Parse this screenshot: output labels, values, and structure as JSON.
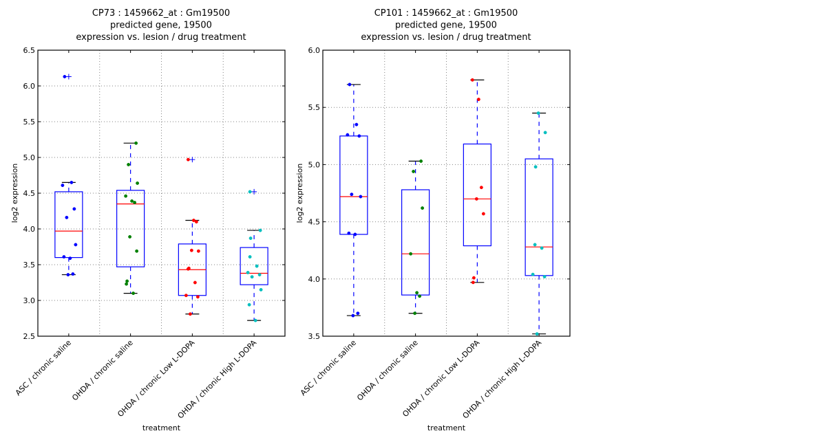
{
  "chart_data": [
    {
      "type": "boxplot",
      "title_lines": [
        "CP73 : 1459662_at : Gm19500",
        "predicted gene, 19500",
        "expression vs. lesion / drug treatment"
      ],
      "xlabel": "treatment",
      "ylabel": "log2 expression",
      "ylim": [
        2.5,
        6.5
      ],
      "yticks": [
        2.5,
        3.0,
        3.5,
        4.0,
        4.5,
        5.0,
        5.5,
        6.0,
        6.5
      ],
      "ytick_labels": [
        "2.5",
        "3.0",
        "3.5",
        "4.0",
        "4.5",
        "5.0",
        "5.5",
        "6.0",
        "6.5"
      ],
      "grid": true,
      "categories": [
        "ASC / chronic saline",
        "OHDA / chronic saline",
        "OHDA / chronic Low L-DOPA",
        "OHDA / chronic High L-DOPA"
      ],
      "point_colors": [
        "#0000ff",
        "#008000",
        "#ff0000",
        "#00bfbf"
      ],
      "boxes": [
        {
          "q1": 3.6,
          "median": 3.97,
          "q3": 4.52,
          "whisker_low": 3.36,
          "whisker_high": 4.65,
          "outliers": [
            6.13
          ]
        },
        {
          "q1": 3.47,
          "median": 4.35,
          "q3": 4.54,
          "whisker_low": 3.1,
          "whisker_high": 5.2,
          "outliers": []
        },
        {
          "q1": 3.07,
          "median": 3.43,
          "q3": 3.79,
          "whisker_low": 2.81,
          "whisker_high": 4.12,
          "outliers": [
            4.97
          ]
        },
        {
          "q1": 3.22,
          "median": 3.38,
          "q3": 3.74,
          "whisker_low": 2.72,
          "whisker_high": 3.98,
          "outliers": [
            4.52
          ]
        }
      ],
      "points": [
        [
          6.13,
          4.65,
          4.61,
          4.28,
          4.16,
          3.78,
          3.61,
          3.59,
          3.37,
          3.36
        ],
        [
          5.2,
          4.9,
          4.64,
          4.46,
          4.39,
          4.37,
          3.89,
          3.69,
          3.27,
          3.23,
          3.1
        ],
        [
          4.97,
          4.12,
          4.1,
          3.7,
          3.69,
          3.45,
          3.44,
          3.25,
          3.07,
          3.05,
          2.81
        ],
        [
          4.52,
          3.98,
          3.87,
          3.61,
          3.48,
          3.39,
          3.36,
          3.33,
          3.15,
          2.94,
          2.72
        ]
      ]
    },
    {
      "type": "boxplot",
      "title_lines": [
        "CP101 : 1459662_at : Gm19500",
        "predicted gene, 19500",
        "expression vs. lesion / drug treatment"
      ],
      "xlabel": "treatment",
      "ylabel": "log2 expression",
      "ylim": [
        3.5,
        6.0
      ],
      "yticks": [
        3.5,
        4.0,
        4.5,
        5.0,
        5.5,
        6.0
      ],
      "ytick_labels": [
        "3.5",
        "4.0",
        "4.5",
        "5.0",
        "5.5",
        "6.0"
      ],
      "grid": true,
      "categories": [
        "ASC / chronic saline",
        "OHDA / chronic saline",
        "OHDA / chronic Low L-DOPA",
        "OHDA / chronic High L-DOPA"
      ],
      "point_colors": [
        "#0000ff",
        "#008000",
        "#ff0000",
        "#00bfbf"
      ],
      "boxes": [
        {
          "q1": 4.39,
          "median": 4.72,
          "q3": 5.25,
          "whisker_low": 3.68,
          "whisker_high": 5.7,
          "outliers": []
        },
        {
          "q1": 3.86,
          "median": 4.22,
          "q3": 4.78,
          "whisker_low": 3.7,
          "whisker_high": 5.03,
          "outliers": []
        },
        {
          "q1": 4.29,
          "median": 4.7,
          "q3": 5.18,
          "whisker_low": 3.97,
          "whisker_high": 5.74,
          "outliers": []
        },
        {
          "q1": 4.03,
          "median": 4.28,
          "q3": 5.05,
          "whisker_low": 3.52,
          "whisker_high": 5.45,
          "outliers": []
        }
      ],
      "points": [
        [
          5.7,
          5.35,
          5.26,
          5.25,
          4.74,
          4.72,
          4.4,
          4.39,
          3.7,
          3.68
        ],
        [
          5.03,
          4.94,
          4.62,
          4.22,
          3.88,
          3.85,
          3.7
        ],
        [
          5.74,
          5.57,
          4.8,
          4.7,
          4.57,
          4.01,
          3.97
        ],
        [
          5.45,
          5.28,
          4.98,
          4.3,
          4.27,
          4.04,
          4.02,
          3.52
        ]
      ]
    }
  ]
}
